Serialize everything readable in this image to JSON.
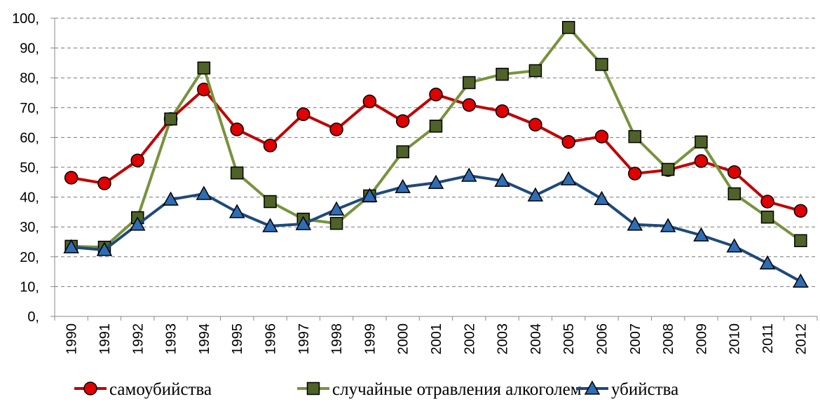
{
  "chart_data": {
    "type": "line",
    "categories": [
      "1990",
      "1991",
      "1992",
      "1993",
      "1994",
      "1995",
      "1996",
      "1997",
      "1998",
      "1999",
      "2000",
      "2001",
      "2002",
      "2003",
      "2004",
      "2005",
      "2006",
      "2007",
      "2008",
      "2009",
      "2010",
      "2011",
      "2012"
    ],
    "series": [
      {
        "name": "самоубийства",
        "color": "#c00000",
        "marker": "circle",
        "values": [
          46.5,
          44.6,
          52.3,
          66.2,
          76.1,
          62.7,
          57.3,
          67.8,
          62.7,
          72.1,
          65.5,
          74.4,
          70.9,
          68.8,
          64.3,
          58.5,
          60.3,
          47.9,
          49.1,
          52.1,
          48.4,
          38.5,
          35.4
        ]
      },
      {
        "name": "случайные отравления алкоголем",
        "color": "#77933c",
        "marker": "square",
        "values": [
          23.5,
          23.2,
          33.1,
          66.2,
          83.3,
          48.1,
          38.5,
          32.6,
          31.2,
          40.4,
          55.2,
          63.8,
          78.4,
          81.2,
          82.4,
          96.9,
          84.5,
          60.3,
          49.3,
          58.5,
          41.1,
          33.3,
          25.4
        ]
      },
      {
        "name": "убийства",
        "color": "#1f497d",
        "marker": "triangle",
        "values": [
          23.2,
          22.3,
          30.8,
          39.2,
          41.1,
          35.0,
          30.3,
          31.0,
          35.9,
          40.4,
          43.4,
          44.8,
          47.2,
          45.5,
          40.6,
          46.0,
          39.4,
          30.8,
          30.3,
          27.2,
          23.5,
          17.8,
          11.7
        ]
      }
    ],
    "ylim": [
      0,
      100
    ],
    "yticks": [
      {
        "value": 0,
        "label": "0,"
      },
      {
        "value": 10,
        "label": "10,"
      },
      {
        "value": 20,
        "label": "20,"
      },
      {
        "value": 30,
        "label": "30,"
      },
      {
        "value": 40,
        "label": "40,"
      },
      {
        "value": 50,
        "label": "50,"
      },
      {
        "value": 60,
        "label": "60,"
      },
      {
        "value": 70,
        "label": "70,"
      },
      {
        "value": 80,
        "label": "80,"
      },
      {
        "value": 90,
        "label": "90,"
      },
      {
        "value": 100,
        "label": "100,"
      }
    ],
    "grid": true,
    "legend": "bottom"
  }
}
